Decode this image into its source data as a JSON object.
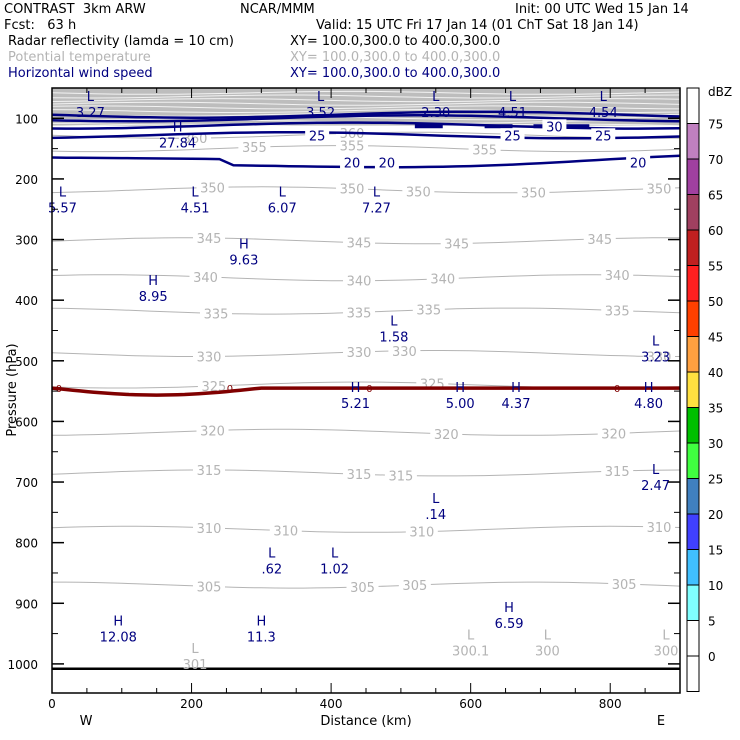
{
  "header": {
    "model": "CONTRAST  3km ARW",
    "org": "NCAR/MMM",
    "init": "Init: 00 UTC Wed 15 Jan 14",
    "fcst": "Fcst:   63 h",
    "valid": "Valid: 15 UTC Fri 17 Jan 14 (01 ChT Sat 18 Jan 14)",
    "fields": [
      {
        "name": "Radar reflectivity (lamda = 10 cm)",
        "xy": "XY= 100.0,300.0 to 400.0,300.0",
        "color": "#000000"
      },
      {
        "name": "Potential temperature",
        "xy": "XY= 100.0,300.0 to 400.0,300.0",
        "color": "#b4b4b4"
      },
      {
        "name": "Horizontal wind speed",
        "xy": "XY= 100.0,300.0 to 400.0,300.0",
        "color": "#000080"
      }
    ]
  },
  "chart_data": {
    "type": "contour-cross-section",
    "xlabel": "Distance (km)",
    "ylabel": "Pressure (hPa)",
    "xlim": [
      0,
      900
    ],
    "ylim": [
      1048,
      50
    ],
    "x_ticks": [
      0,
      200,
      400,
      600,
      800
    ],
    "y_ticks": [
      100,
      200,
      300,
      400,
      500,
      600,
      700,
      800,
      900,
      1000
    ],
    "x_end_labels": {
      "left": "W",
      "right": "E"
    },
    "colorbar": {
      "unit": "dBZ",
      "levels": [
        0,
        5,
        10,
        15,
        20,
        25,
        30,
        35,
        40,
        45,
        50,
        55,
        60,
        65,
        70,
        75
      ],
      "colors": [
        "#ffffff",
        "#ffffff",
        "#80ffff",
        "#40c0ff",
        "#4040ff",
        "#4080c0",
        "#40ff40",
        "#00c000",
        "#ffe040",
        "#ffa040",
        "#ff4000",
        "#ff2020",
        "#c02020",
        "#a04060",
        "#a040a0",
        "#c080c0",
        "#ffffff"
      ]
    },
    "theta_contours": {
      "color": "#b4b4b4",
      "lines": [
        {
          "value": 360,
          "p": 128,
          "labels_x": [
            205,
            430
          ]
        },
        {
          "value": 355,
          "p": 150,
          "labels_x": [
            290,
            430,
            620
          ]
        },
        {
          "value": 350,
          "p": 218,
          "labels_x": [
            230,
            430,
            525,
            690,
            870
          ]
        },
        {
          "value": 345,
          "p": 302,
          "labels_x": [
            225,
            440,
            580,
            785
          ]
        },
        {
          "value": 340,
          "p": 363,
          "labels_x": [
            220,
            440,
            560,
            810
          ]
        },
        {
          "value": 335,
          "p": 418,
          "labels_x": [
            235,
            440,
            540,
            810
          ]
        },
        {
          "value": 330,
          "p": 488,
          "labels_x": [
            225,
            440,
            505,
            870
          ]
        },
        {
          "value": 325,
          "p": 540,
          "labels_x": [
            232,
            545
          ]
        },
        {
          "value": 320,
          "p": 618,
          "labels_x": [
            230,
            565,
            805
          ]
        },
        {
          "value": 315,
          "p": 685,
          "labels_x": [
            225,
            440,
            500,
            810
          ]
        },
        {
          "value": 310,
          "p": 778,
          "labels_x": [
            225,
            335,
            530,
            870
          ]
        },
        {
          "value": 305,
          "p": 870,
          "labels_x": [
            225,
            445,
            520,
            820
          ]
        }
      ]
    },
    "wind_contours": {
      "color": "#000080",
      "lines": [
        {
          "value": 30,
          "p": 100,
          "labels_x": [
            720
          ]
        },
        {
          "value": 25,
          "p": 128,
          "labels_x": [
            380,
            660,
            790
          ]
        },
        {
          "value": 20,
          "p": 163,
          "labels_x": [
            430,
            480,
            840
          ]
        }
      ]
    },
    "reflectivity_zero_contour": {
      "color": "#800000",
      "p": 545,
      "labels_x": [
        10,
        255,
        455,
        810
      ]
    },
    "surface_line_p": 1008,
    "extrema": [
      {
        "type": "L",
        "value": "3.27",
        "x": 55,
        "p": 75,
        "field": "wind"
      },
      {
        "type": "L",
        "value": "3.52",
        "x": 385,
        "p": 75,
        "field": "wind"
      },
      {
        "type": "L",
        "value": "2.30",
        "x": 550,
        "p": 75,
        "field": "wind"
      },
      {
        "type": "L",
        "value": "4.51",
        "x": 660,
        "p": 75,
        "field": "wind"
      },
      {
        "type": "L",
        "value": "4.54",
        "x": 790,
        "p": 75,
        "field": "wind"
      },
      {
        "type": "H",
        "value": "27.84",
        "x": 180,
        "p": 125,
        "field": "wind"
      },
      {
        "type": "L",
        "value": "5.57",
        "x": 15,
        "p": 232,
        "field": "wind"
      },
      {
        "type": "L",
        "value": "4.51",
        "x": 205,
        "p": 232,
        "field": "wind"
      },
      {
        "type": "L",
        "value": "6.07",
        "x": 330,
        "p": 232,
        "field": "wind"
      },
      {
        "type": "L",
        "value": "7.27",
        "x": 465,
        "p": 232,
        "field": "wind"
      },
      {
        "type": "H",
        "value": "9.63",
        "x": 275,
        "p": 318,
        "field": "wind"
      },
      {
        "type": "H",
        "value": "8.95",
        "x": 145,
        "p": 378,
        "field": "wind"
      },
      {
        "type": "L",
        "value": "1.58",
        "x": 490,
        "p": 445,
        "field": "wind"
      },
      {
        "type": "L",
        "value": "3.23",
        "x": 865,
        "p": 478,
        "field": "wind"
      },
      {
        "type": "H",
        "value": "5.21",
        "x": 435,
        "p": 555,
        "field": "wind"
      },
      {
        "type": "H",
        "value": "5.00",
        "x": 585,
        "p": 555,
        "field": "wind"
      },
      {
        "type": "H",
        "value": "4.37",
        "x": 665,
        "p": 555,
        "field": "wind"
      },
      {
        "type": "H",
        "value": "4.80",
        "x": 855,
        "p": 555,
        "field": "wind"
      },
      {
        "type": "L",
        "value": "2.47",
        "x": 865,
        "p": 690,
        "field": "wind"
      },
      {
        "type": "L",
        "value": ".14",
        "x": 550,
        "p": 738,
        "field": "wind"
      },
      {
        "type": "L",
        "value": ".62",
        "x": 315,
        "p": 828,
        "field": "wind"
      },
      {
        "type": "L",
        "value": "1.02",
        "x": 405,
        "p": 828,
        "field": "wind"
      },
      {
        "type": "H",
        "value": "12.08",
        "x": 95,
        "p": 940,
        "field": "wind"
      },
      {
        "type": "H",
        "value": "11.3",
        "x": 300,
        "p": 940,
        "field": "wind"
      },
      {
        "type": "H",
        "value": "6.59",
        "x": 655,
        "p": 918,
        "field": "wind"
      },
      {
        "type": "L",
        "value": "301",
        "x": 205,
        "p": 985,
        "field": "theta"
      },
      {
        "type": "L",
        "value": "300.1",
        "x": 600,
        "p": 963,
        "field": "theta"
      },
      {
        "type": "L",
        "value": "300",
        "x": 710,
        "p": 963,
        "field": "theta"
      },
      {
        "type": "L",
        "value": "300",
        "x": 880,
        "p": 963,
        "field": "theta"
      }
    ]
  }
}
